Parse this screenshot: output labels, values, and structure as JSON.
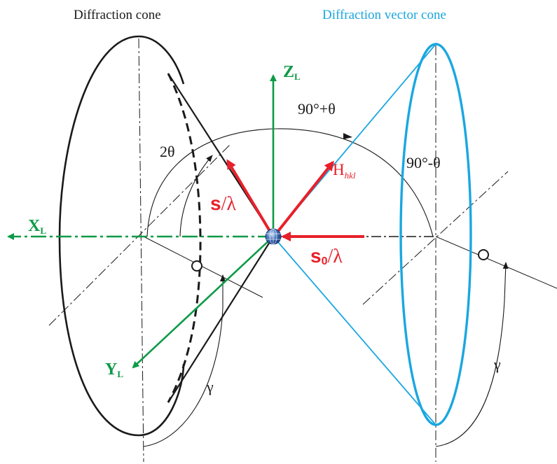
{
  "titles": {
    "left": "Diffraction cone",
    "right": "Diffraction vector cone"
  },
  "axes": {
    "x": {
      "letter": "X",
      "sub": "L"
    },
    "y": {
      "letter": "Y",
      "sub": "L"
    },
    "z": {
      "letter": "Z",
      "sub": "L"
    }
  },
  "vectors": {
    "s_letter": "s",
    "s_rest": "/λ",
    "s0_letter": "s",
    "s0_sub": "0",
    "s0_rest": "/λ",
    "h_letter": "H",
    "h_sub": "hkl"
  },
  "angles": {
    "two_theta": "2θ",
    "ninety_plus": "90°+θ",
    "ninety_minus": "90°-θ",
    "gamma": "γ"
  },
  "colors": {
    "black": "#1a1a1a",
    "blue": "#1aa7e0",
    "green": "#0d9a47",
    "red": "#e8202a",
    "title_blue": "#1aa7e0"
  }
}
